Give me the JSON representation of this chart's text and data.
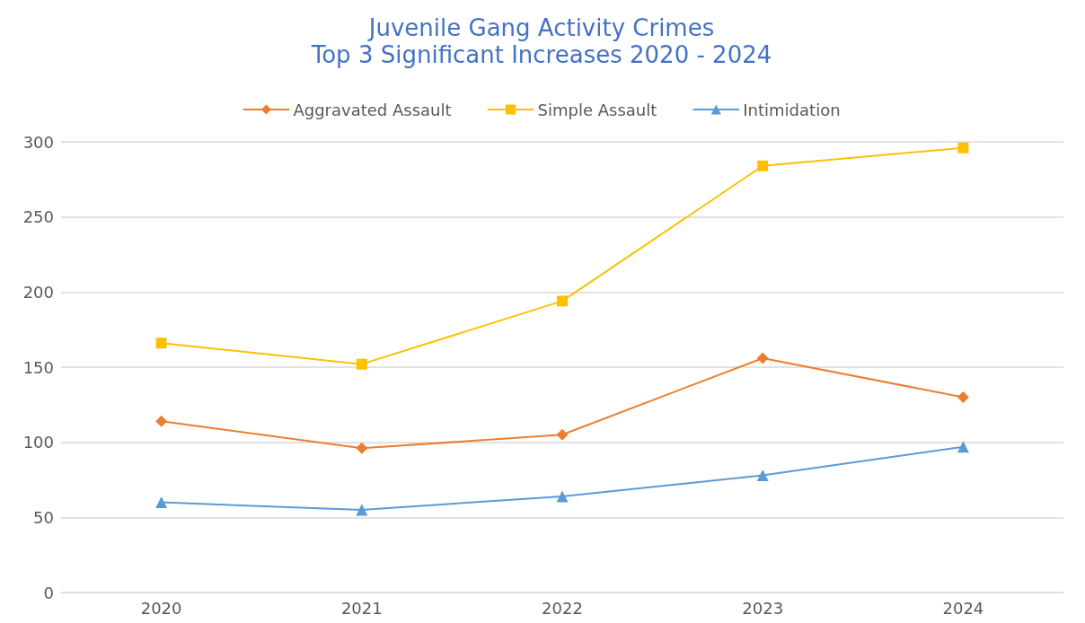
{
  "chart_data": {
    "type": "line",
    "title": "Juvenile Gang Activity Crimes",
    "subtitle": "Top 3 Significant Increases 2020 - 2024",
    "categories": [
      "2020",
      "2021",
      "2022",
      "2023",
      "2024"
    ],
    "series": [
      {
        "name": "Aggravated Assault",
        "color": "#ed7d31",
        "marker": "diamond",
        "values": [
          114,
          96,
          105,
          156,
          130
        ]
      },
      {
        "name": "Simple Assault",
        "color": "#ffc000",
        "marker": "square",
        "values": [
          166,
          152,
          194,
          284,
          296
        ]
      },
      {
        "name": "Intimidation",
        "color": "#5b9bd5",
        "marker": "triangle",
        "values": [
          60,
          55,
          64,
          78,
          97
        ]
      }
    ],
    "ylim": [
      0,
      300
    ],
    "yticks": [
      0,
      50,
      100,
      150,
      200,
      250,
      300
    ],
    "grid": "y",
    "legend": "top",
    "line_style": "solid"
  }
}
